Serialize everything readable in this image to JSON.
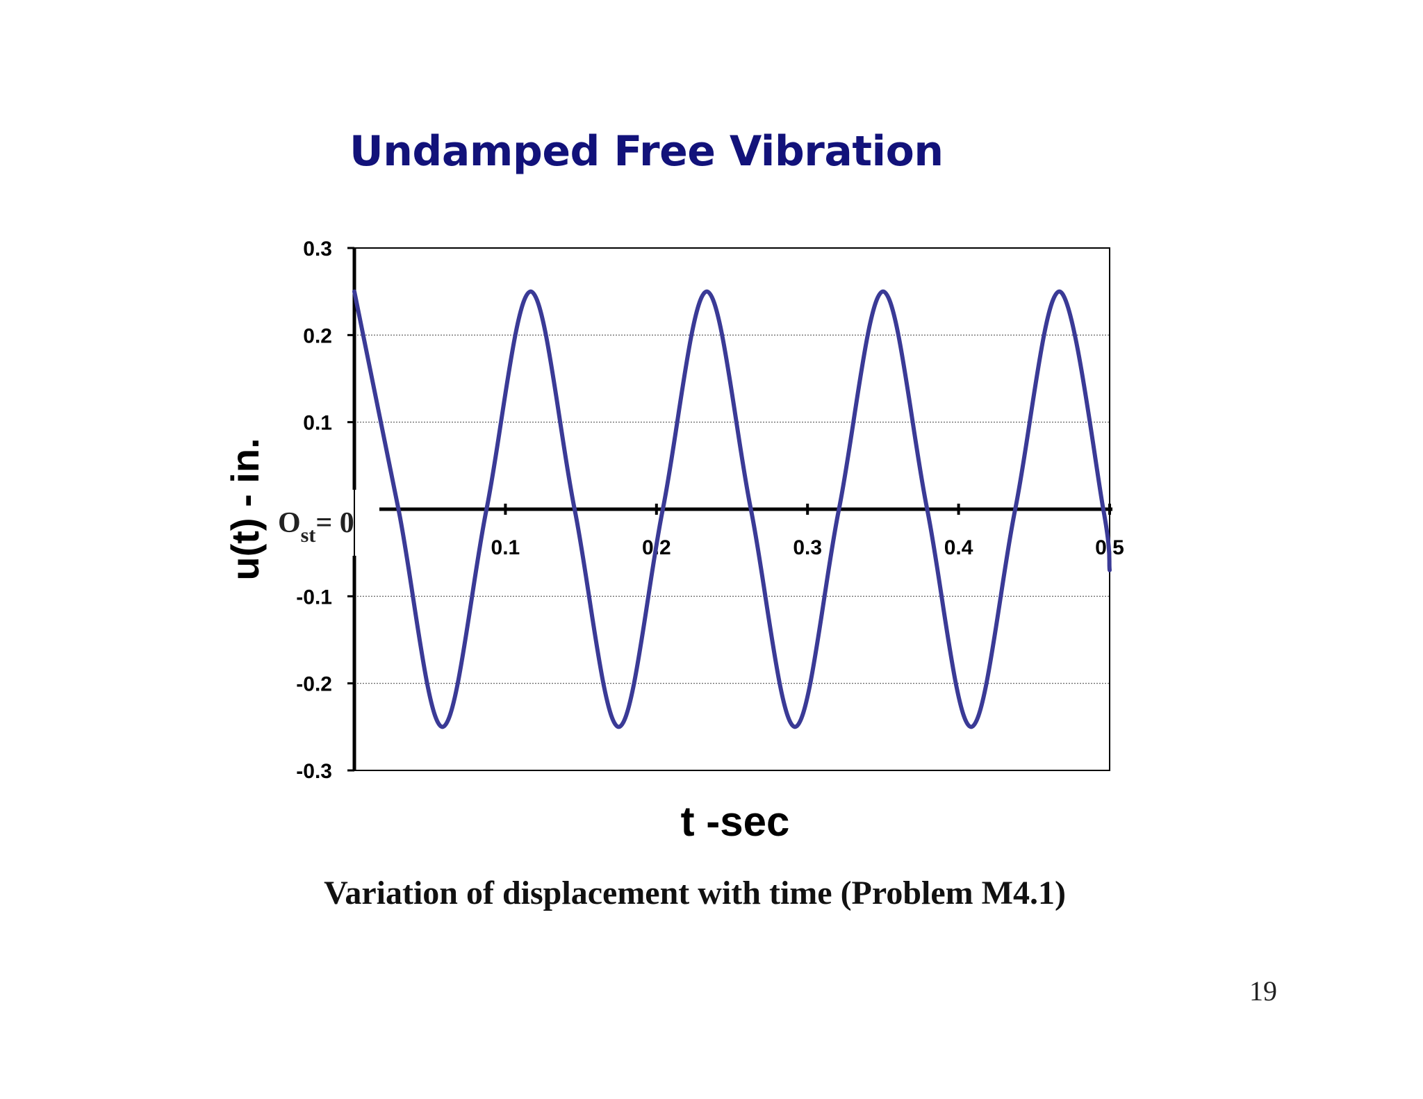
{
  "slide": {
    "title": "Undamped Free Vibration",
    "caption": "Variation of displacement with time (Problem M4.1)",
    "page_number": "19"
  },
  "colors": {
    "title": "#12127a",
    "series": "#3a3a96",
    "axis": "#000000",
    "grid": "#555555"
  },
  "chart_data": {
    "type": "line",
    "xlabel": "t -sec",
    "ylabel": "u(t) - in.",
    "xlim": [
      0,
      0.5
    ],
    "ylim": [
      -0.3,
      0.3
    ],
    "xticks": [
      0.1,
      0.2,
      0.3,
      0.4,
      0.5
    ],
    "xtick_labels": [
      "0.1",
      "0.2",
      "0.3",
      "0.4",
      "0.5"
    ],
    "yticks": [
      0.3,
      0.2,
      0.1,
      -0.1,
      -0.2,
      -0.3
    ],
    "ytick_labels": [
      "0.3",
      "0.2",
      "0.1",
      "-0.1",
      "-0.2",
      "-0.3"
    ],
    "grid": "horizontal dotted lines",
    "origin_label": {
      "main": "O",
      "sub": "st",
      "suffix": "= 0"
    },
    "series": [
      {
        "x": [
          0.0,
          0.0292,
          0.0583,
          0.0875,
          0.1167,
          0.1458,
          0.175,
          0.2042,
          0.2333,
          0.2625,
          0.2917,
          0.3208,
          0.35,
          0.3792,
          0.4083,
          0.4375,
          0.4667,
          0.4958,
          0.5
        ],
        "values": [
          0.25,
          0.0,
          -0.25,
          0.0,
          0.25,
          0.0,
          -0.25,
          0.0,
          0.25,
          0.0,
          -0.25,
          0.0,
          0.25,
          0.0,
          -0.25,
          0.0,
          0.25,
          0.0,
          -0.07
        ]
      }
    ]
  }
}
